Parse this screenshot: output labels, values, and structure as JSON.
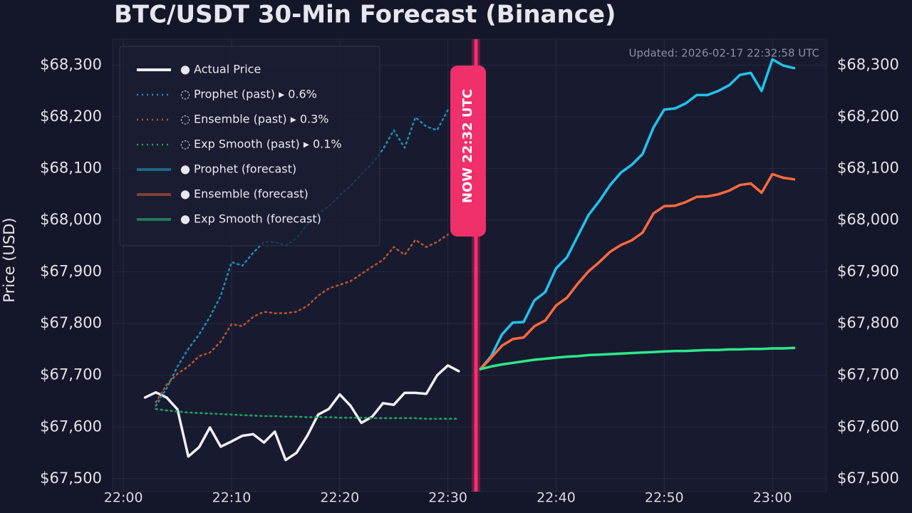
{
  "chart_data": {
    "type": "line",
    "title": "BTC/USDT 30-Min Forecast (Binance)",
    "subtitle": "Updated: 2026-02-17 22:32:58 UTC",
    "y_label": "Price (USD)",
    "annotation": {
      "x": "22:32",
      "label": "NOW  22:32 UTC"
    },
    "legend": "upper left",
    "grid": true,
    "x": [
      "22:02",
      "22:03",
      "22:04",
      "22:05",
      "22:06",
      "22:07",
      "22:08",
      "22:09",
      "22:10",
      "22:11",
      "22:12",
      "22:13",
      "22:14",
      "22:15",
      "22:16",
      "22:17",
      "22:18",
      "22:19",
      "22:20",
      "22:21",
      "22:22",
      "22:23",
      "22:24",
      "22:25",
      "22:26",
      "22:27",
      "22:28",
      "22:29",
      "22:30",
      "22:31",
      "22:32",
      "22:33",
      "22:34",
      "22:35",
      "22:36",
      "22:37",
      "22:38",
      "22:39",
      "22:40",
      "22:41",
      "22:42",
      "22:43",
      "22:44",
      "22:45",
      "22:46",
      "22:47",
      "22:48",
      "22:49",
      "22:50",
      "22:51",
      "22:52",
      "22:53",
      "22:54",
      "22:55",
      "22:56",
      "22:57",
      "22:58",
      "22:59",
      "23:00",
      "23:01",
      "23:02"
    ],
    "xlim": [
      "21:59",
      "23:05"
    ],
    "xticks": [
      "22:00",
      "22:10",
      "22:20",
      "22:30",
      "22:40",
      "22:50",
      "23:00"
    ],
    "ylim": [
      67475,
      68350
    ],
    "yticks": [
      {
        "value": 67500,
        "label": "$67,500"
      },
      {
        "value": 67600,
        "label": "$67,600"
      },
      {
        "value": 67700,
        "label": "$67,700"
      },
      {
        "value": 67800,
        "label": "$67,800"
      },
      {
        "value": 67900,
        "label": "$67,900"
      },
      {
        "value": 68000,
        "label": "$68,000"
      },
      {
        "value": 68100,
        "label": "$68,100"
      },
      {
        "value": 68200,
        "label": "$68,200"
      },
      {
        "value": 68300,
        "label": "$68,300"
      }
    ],
    "series": [
      {
        "name": "● Actual Price",
        "color": "#f0f0f5",
        "style": "solid",
        "values": [
          67657,
          67667,
          67657,
          67634,
          67543,
          67561,
          67599,
          67562,
          67572,
          67583,
          67586,
          67570,
          67591,
          67536,
          67550,
          67583,
          67624,
          67635,
          67663,
          67641,
          67608,
          67620,
          67646,
          67643,
          67666,
          67666,
          67664,
          67700,
          67719,
          67708,
          null,
          null,
          null,
          null,
          null,
          null,
          null,
          null,
          null,
          null,
          null,
          null,
          null,
          null,
          null,
          null,
          null,
          null,
          null,
          null,
          null,
          null,
          null,
          null,
          null,
          null,
          null,
          null,
          null,
          null,
          null
        ]
      },
      {
        "name": "◌ Prophet (past)  ▸ 0.6%",
        "color": "#1f8fb5",
        "style": "dotted",
        "values": [
          null,
          67641,
          67675,
          67717,
          67751,
          67779,
          67813,
          67854,
          67919,
          67912,
          67937,
          67958,
          67958,
          67951,
          67965,
          67992,
          68013,
          68027,
          68048,
          68066,
          68089,
          68110,
          68137,
          68174,
          68140,
          68199,
          68181,
          68174,
          68213,
          null,
          null,
          null,
          null,
          null,
          null,
          null,
          null,
          null,
          null,
          null,
          null,
          null,
          null,
          null,
          null,
          null,
          null,
          null,
          null,
          null,
          null,
          null,
          null,
          null,
          null,
          null,
          null,
          null,
          null,
          null,
          null
        ]
      },
      {
        "name": "◌ Ensemble (past)  ▸ 0.3%",
        "color": "#b9552f",
        "style": "dotted",
        "values": [
          null,
          67648,
          67682,
          67703,
          67717,
          67737,
          67744,
          67765,
          67799,
          67795,
          67813,
          67823,
          67820,
          67820,
          67823,
          67834,
          67854,
          67868,
          67875,
          67882,
          67896,
          67910,
          67923,
          67948,
          67933,
          67962,
          67948,
          67958,
          67972,
          null,
          null,
          null,
          null,
          null,
          null,
          null,
          null,
          null,
          null,
          null,
          null,
          null,
          null,
          null,
          null,
          null,
          null,
          null,
          null,
          null,
          null,
          null,
          null,
          null,
          null,
          null,
          null,
          null,
          null,
          null,
          null
        ]
      },
      {
        "name": "◌ Exp Smooth (past)  ▸ 0.1%",
        "color": "#1aa862",
        "style": "dotted",
        "values": [
          null,
          67635,
          67632,
          67630,
          67628,
          67627,
          67626,
          67625,
          67624,
          67623,
          67622,
          67621,
          67621,
          67620,
          67620,
          67619,
          67619,
          67619,
          67618,
          67618,
          67618,
          67617,
          67617,
          67617,
          67617,
          67617,
          67616,
          67616,
          67616,
          67616,
          null,
          null,
          null,
          null,
          null,
          null,
          null,
          null,
          null,
          null,
          null,
          null,
          null,
          null,
          null,
          null,
          null,
          null,
          null,
          null,
          null,
          null,
          null,
          null,
          null,
          null,
          null,
          null,
          null,
          null,
          null
        ]
      },
      {
        "name": "● Prophet (forecast)",
        "color": "#22c3ee",
        "style": "solid",
        "values": [
          null,
          null,
          null,
          null,
          null,
          null,
          null,
          null,
          null,
          null,
          null,
          null,
          null,
          null,
          null,
          null,
          null,
          null,
          null,
          null,
          null,
          null,
          null,
          null,
          null,
          null,
          null,
          null,
          null,
          null,
          null,
          67712,
          67737,
          67779,
          67802,
          67803,
          67845,
          67861,
          67907,
          67928,
          67969,
          68010,
          68037,
          68068,
          68092,
          68107,
          68128,
          68179,
          68214,
          68216,
          68226,
          68242,
          68242,
          68250,
          68261,
          68281,
          68285,
          68250,
          68311,
          68299,
          68294
        ]
      },
      {
        "name": "● Ensemble (forecast)",
        "color": "#ff6a3d",
        "style": "solid",
        "values": [
          null,
          null,
          null,
          null,
          null,
          null,
          null,
          null,
          null,
          null,
          null,
          null,
          null,
          null,
          null,
          null,
          null,
          null,
          null,
          null,
          null,
          null,
          null,
          null,
          null,
          null,
          null,
          null,
          null,
          null,
          null,
          67712,
          67734,
          67757,
          67770,
          67773,
          67795,
          67806,
          67835,
          67850,
          67877,
          67901,
          67919,
          67939,
          67952,
          67961,
          67976,
          68013,
          68027,
          68028,
          68035,
          68045,
          68046,
          68050,
          68057,
          68068,
          68071,
          68053,
          68089,
          68082,
          68079
        ]
      },
      {
        "name": "● Exp Smooth (forecast)",
        "color": "#2ee88a",
        "style": "solid",
        "values": [
          null,
          null,
          null,
          null,
          null,
          null,
          null,
          null,
          null,
          null,
          null,
          null,
          null,
          null,
          null,
          null,
          null,
          null,
          null,
          null,
          null,
          null,
          null,
          null,
          null,
          null,
          null,
          null,
          null,
          null,
          null,
          67712,
          67717,
          67721,
          67724,
          67727,
          67730,
          67732,
          67734,
          67736,
          67737,
          67739,
          67740,
          67741,
          67742,
          67743,
          67744,
          67745,
          67746,
          67747,
          67747,
          67748,
          67749,
          67749,
          67750,
          67750,
          67751,
          67751,
          67752,
          67752,
          67753
        ]
      }
    ]
  }
}
